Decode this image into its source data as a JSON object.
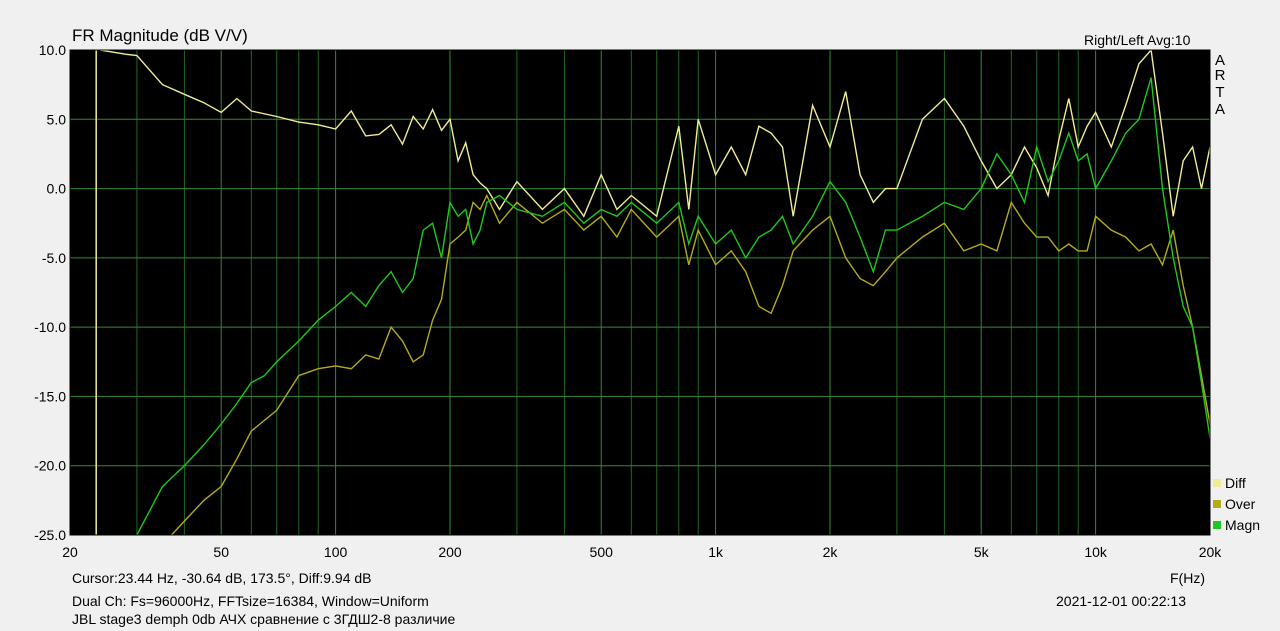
{
  "header": {
    "title": "FR Magnitude (dB V/V)",
    "channel_avg": "Right/Left  Avg:10",
    "brand_letters": [
      "A",
      "R",
      "T",
      "A"
    ]
  },
  "footer": {
    "cursor": "Cursor:23.44 Hz, -30.64 dB, 173.5°, Diff:9.94 dB",
    "dual_ch": "Dual Ch: Fs=96000Hz, FFTsize=16384, Window=Uniform",
    "description": "JBL stage3 demph 0db АЧХ сравнение с 3ГДШ2-8 различие",
    "x_unit": "F(Hz)",
    "datetime": "2021-12-01  00:22:13"
  },
  "legend": [
    {
      "label": "Diff",
      "color": "#f0ec96"
    },
    {
      "label": "Over",
      "color": "#b4aa1e"
    },
    {
      "label": "Magn",
      "color": "#1ec81e"
    }
  ],
  "chart_data": {
    "type": "line",
    "title": "FR Magnitude (dB V/V)",
    "xlabel": "F(Hz)",
    "ylabel": "",
    "x_scale": "log",
    "xlim": [
      20,
      20000
    ],
    "ylim": [
      -25,
      10
    ],
    "grid": true,
    "background": "#000000",
    "grid_color": "#2e8b2e",
    "legend_position": "bottom-right",
    "xticks": [
      20,
      50,
      100,
      200,
      500,
      1000,
      2000,
      5000,
      10000,
      20000
    ],
    "xtick_labels": [
      "20",
      "50",
      "100",
      "200",
      "500",
      "1k",
      "2k",
      "5k",
      "10k",
      "20k"
    ],
    "yticks": [
      10,
      5,
      0,
      -5,
      -10,
      -15,
      -20,
      -25
    ],
    "ytick_labels": [
      "10.0",
      "5.0",
      "0.0",
      "-5.0",
      "-10.0",
      "-15.0",
      "-20.0",
      "-25.0"
    ],
    "cursor_x": 23.44,
    "series": [
      {
        "name": "Diff",
        "color": "#f0ec96",
        "x": [
          24,
          28,
          30,
          35,
          40,
          45,
          50,
          55,
          60,
          70,
          80,
          90,
          100,
          110,
          120,
          130,
          140,
          150,
          160,
          170,
          180,
          190,
          200,
          210,
          220,
          230,
          240,
          250,
          270,
          300,
          350,
          400,
          450,
          500,
          550,
          600,
          700,
          800,
          850,
          900,
          1000,
          1100,
          1200,
          1300,
          1400,
          1500,
          1600,
          1800,
          2000,
          2200,
          2400,
          2600,
          2800,
          3000,
          3500,
          4000,
          4500,
          5000,
          5500,
          6000,
          6500,
          7000,
          7500,
          8000,
          8500,
          9000,
          9500,
          10000,
          11000,
          12000,
          13000,
          14000,
          15000,
          16000,
          17000,
          18000,
          19000,
          20000
        ],
        "y": [
          10,
          9.7,
          9.6,
          7.5,
          6.8,
          6.2,
          5.5,
          6.5,
          5.6,
          5.2,
          4.8,
          4.6,
          4.3,
          5.6,
          3.8,
          3.9,
          4.6,
          3.2,
          5.2,
          4.3,
          5.7,
          4.2,
          5.0,
          2.0,
          3.3,
          1.0,
          0.4,
          0.0,
          -1.5,
          0.5,
          -1.5,
          0.0,
          -2.0,
          1.0,
          -1.5,
          -0.5,
          -2.0,
          4.5,
          -1.5,
          5.0,
          1.0,
          3.0,
          1.0,
          4.5,
          4.0,
          3.0,
          -2.0,
          6.0,
          3.0,
          7.0,
          1.0,
          -1.0,
          0.0,
          0.0,
          5.0,
          6.5,
          4.5,
          2.0,
          0.0,
          1.0,
          3.0,
          1.5,
          -0.5,
          3.5,
          6.5,
          3.0,
          4.5,
          5.5,
          3.0,
          6.0,
          9.0,
          10.0,
          4.0,
          -2.0,
          2.0,
          3.0,
          0.0,
          3.0
        ]
      },
      {
        "name": "Over",
        "color": "#b4aa1e",
        "x": [
          37,
          40,
          45,
          50,
          55,
          60,
          70,
          80,
          90,
          100,
          110,
          120,
          130,
          140,
          150,
          160,
          170,
          180,
          190,
          200,
          210,
          220,
          230,
          240,
          250,
          270,
          300,
          350,
          400,
          450,
          500,
          550,
          600,
          700,
          800,
          850,
          900,
          1000,
          1100,
          1200,
          1300,
          1400,
          1500,
          1600,
          1800,
          2000,
          2200,
          2400,
          2600,
          2800,
          3000,
          3500,
          4000,
          4500,
          5000,
          5500,
          6000,
          6500,
          7000,
          7500,
          8000,
          8500,
          9000,
          9500,
          10000,
          11000,
          12000,
          13000,
          14000,
          15000,
          16000,
          17000,
          18000,
          19000,
          20000
        ],
        "y": [
          -25,
          -24,
          -22.5,
          -21.5,
          -19.5,
          -17.5,
          -16,
          -13.5,
          -13,
          -12.8,
          -13,
          -12,
          -12.3,
          -10,
          -11,
          -12.5,
          -12,
          -9.5,
          -8,
          -4,
          -3.5,
          -3,
          -1,
          -1.5,
          -0.5,
          -2.5,
          -1.0,
          -2.5,
          -1.5,
          -3.0,
          -2.0,
          -3.5,
          -1.5,
          -3.5,
          -2.0,
          -5.5,
          -3.0,
          -5.5,
          -4.5,
          -6.0,
          -8.5,
          -9.0,
          -7.0,
          -4.5,
          -3.0,
          -2.0,
          -5.0,
          -6.5,
          -7.0,
          -6.0,
          -5.0,
          -3.5,
          -2.5,
          -4.5,
          -4.0,
          -4.5,
          -1.0,
          -2.5,
          -3.5,
          -3.5,
          -4.5,
          -4.0,
          -4.5,
          -4.5,
          -2.0,
          -3.0,
          -3.5,
          -4.5,
          -4.0,
          -5.5,
          -3.0,
          -7.0,
          -10.0,
          -13.5,
          -17.0
        ]
      },
      {
        "name": "Magn",
        "color": "#1ec81e",
        "x": [
          30,
          35,
          40,
          45,
          50,
          55,
          60,
          65,
          70,
          80,
          90,
          100,
          110,
          120,
          130,
          140,
          150,
          160,
          170,
          180,
          190,
          200,
          210,
          220,
          230,
          240,
          250,
          270,
          300,
          350,
          400,
          450,
          500,
          550,
          600,
          700,
          800,
          850,
          900,
          1000,
          1100,
          1200,
          1300,
          1400,
          1500,
          1600,
          1800,
          2000,
          2200,
          2400,
          2600,
          2800,
          3000,
          3500,
          4000,
          4500,
          5000,
          5500,
          6000,
          6500,
          7000,
          7500,
          8000,
          8500,
          9000,
          9500,
          10000,
          11000,
          12000,
          13000,
          14000,
          15000,
          16000,
          17000,
          18000,
          19000,
          20000
        ],
        "y": [
          -25,
          -21.5,
          -20,
          -18.5,
          -17,
          -15.5,
          -14,
          -13.5,
          -12.5,
          -11,
          -9.5,
          -8.5,
          -7.5,
          -8.5,
          -7,
          -6,
          -7.5,
          -6.5,
          -3,
          -2.5,
          -5,
          -1,
          -2,
          -1.5,
          -4,
          -3,
          -1,
          -0.5,
          -1.5,
          -2.0,
          -1.0,
          -2.5,
          -1.5,
          -2.0,
          -1.0,
          -2.5,
          -1.0,
          -4.0,
          -2.0,
          -4.0,
          -3.0,
          -5.0,
          -3.5,
          -3.0,
          -2.0,
          -4.0,
          -2.0,
          0.5,
          -1.0,
          -3.5,
          -6.0,
          -3.0,
          -3.0,
          -2.0,
          -1.0,
          -1.5,
          0.0,
          2.5,
          1.0,
          -1.0,
          3.0,
          0.5,
          2.0,
          4.0,
          2.0,
          2.5,
          0.0,
          2.0,
          4.0,
          5.0,
          8.0,
          0.0,
          -5.0,
          -8.5,
          -10.0,
          -14.0,
          -18.0
        ]
      }
    ]
  }
}
